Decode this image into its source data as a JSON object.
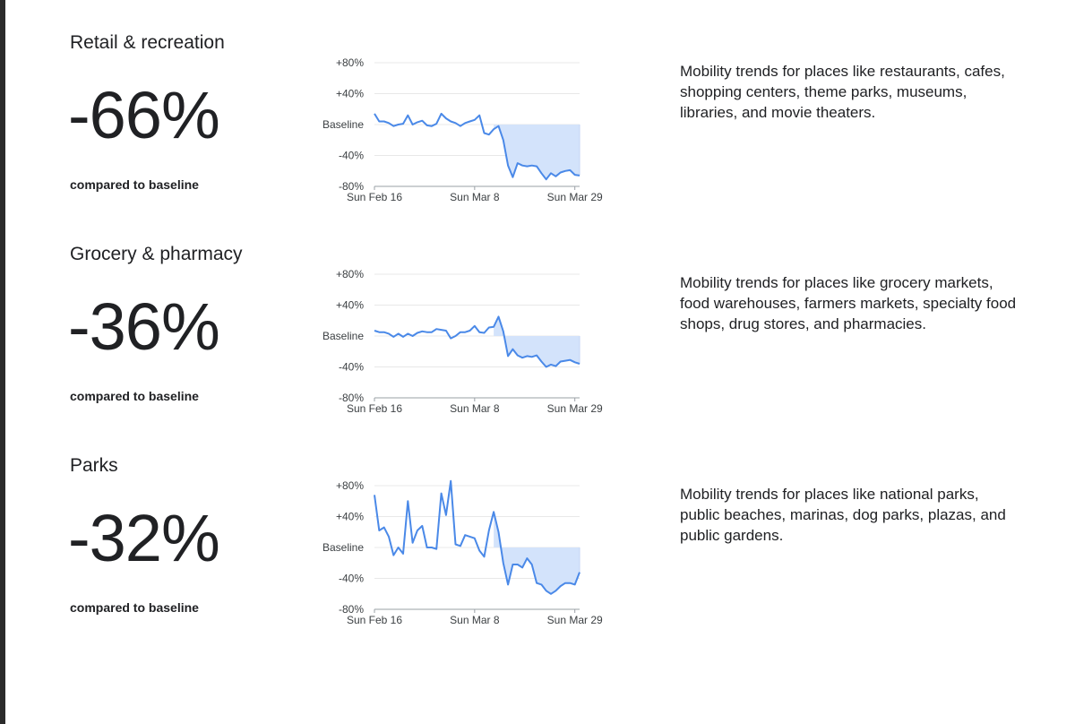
{
  "colors": {
    "line": "#4a89e8",
    "fill": "#d3e3fb",
    "text": "#202124",
    "grid": "#e8e8e8"
  },
  "sections": [
    {
      "title": "Retail & recreation",
      "value": "-66%",
      "compared": "compared to baseline",
      "description": "Mobility trends for places like restaurants, cafes, shopping centers, theme parks, museums, libraries, and movie theaters."
    },
    {
      "title": "Grocery & pharmacy",
      "value": "-36%",
      "compared": "compared to baseline",
      "description": "Mobility trends for places like grocery markets, food warehouses, farmers markets, specialty food shops, drug stores, and pharmacies."
    },
    {
      "title": "Parks",
      "value": "-32%",
      "compared": "compared to baseline",
      "description": "Mobility trends for places like national parks, public beaches, marinas, dog parks, plazas, and public gardens."
    }
  ],
  "chart_data": [
    {
      "type": "line",
      "title": "",
      "y_tick_labels": [
        "+80%",
        "+40%",
        "Baseline",
        "-40%",
        "-80%"
      ],
      "y_ticks": [
        80,
        40,
        0,
        -40,
        -80
      ],
      "ylim": [
        -80,
        80
      ],
      "x_tick_labels": [
        "Sun Feb 16",
        "Sun Mar 8",
        "Sun Mar 29"
      ],
      "x_tick_index": [
        0,
        21,
        42
      ],
      "shade_from_index": 25,
      "values": [
        14,
        4,
        4,
        2,
        -2,
        0,
        1,
        12,
        0,
        3,
        5,
        -1,
        -2,
        1,
        14,
        8,
        4,
        2,
        -2,
        2,
        4,
        6,
        12,
        -11,
        -13,
        -6,
        -2,
        -20,
        -53,
        -68,
        -50,
        -53,
        -54,
        -53,
        -54,
        -63,
        -71,
        -63,
        -67,
        -62,
        -60,
        -59,
        -65,
        -66
      ]
    },
    {
      "type": "line",
      "title": "",
      "y_tick_labels": [
        "+80%",
        "+40%",
        "Baseline",
        "-40%",
        "-80%"
      ],
      "y_ticks": [
        80,
        40,
        0,
        -40,
        -80
      ],
      "ylim": [
        -80,
        80
      ],
      "x_tick_labels": [
        "Sun Feb 16",
        "Sun Mar 8",
        "Sun Mar 29"
      ],
      "x_tick_index": [
        0,
        21,
        42
      ],
      "shade_from_index": 25,
      "values": [
        7,
        5,
        5,
        3,
        -1,
        3,
        -1,
        3,
        0,
        4,
        6,
        5,
        5,
        9,
        8,
        7,
        -3,
        0,
        5,
        5,
        7,
        13,
        5,
        4,
        11,
        12,
        25,
        6,
        -26,
        -17,
        -25,
        -28,
        -26,
        -27,
        -25,
        -33,
        -40,
        -37,
        -39,
        -33,
        -32,
        -31,
        -34,
        -36
      ]
    },
    {
      "type": "line",
      "title": "",
      "y_tick_labels": [
        "+80%",
        "+40%",
        "Baseline",
        "-40%",
        "-80%"
      ],
      "y_ticks": [
        80,
        40,
        0,
        -40,
        -80
      ],
      "ylim": [
        -80,
        80
      ],
      "x_tick_labels": [
        "Sun Feb 16",
        "Sun Mar 8",
        "Sun Mar 29"
      ],
      "x_tick_index": [
        0,
        21,
        42
      ],
      "shade_from_index": 25,
      "values": [
        68,
        22,
        26,
        14,
        -10,
        0,
        -8,
        60,
        6,
        22,
        28,
        0,
        0,
        -2,
        70,
        42,
        86,
        4,
        2,
        16,
        14,
        12,
        -4,
        -12,
        22,
        46,
        20,
        -20,
        -48,
        -22,
        -22,
        -26,
        -14,
        -22,
        -46,
        -48,
        -56,
        -60,
        -56,
        -50,
        -46,
        -46,
        -48,
        -32
      ]
    }
  ]
}
